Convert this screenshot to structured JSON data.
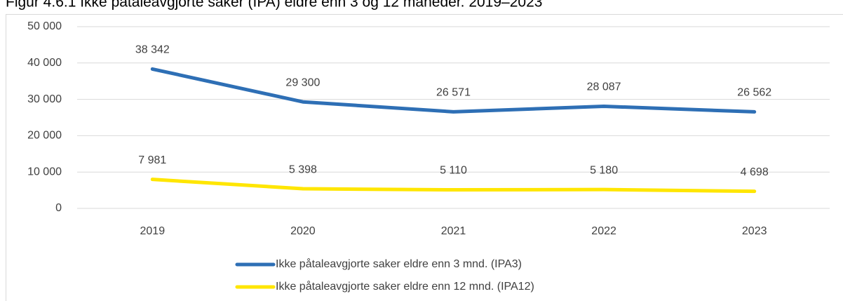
{
  "chart_data": {
    "type": "line",
    "title": "Figur 4.6.1 Ikke påtaleavgjorte saker (IPA) eldre enn 3 og 12 måneder. 2019–2023",
    "categories": [
      "2019",
      "2020",
      "2021",
      "2022",
      "2023"
    ],
    "series": [
      {
        "name": "Ikke påtaleavgjorte saker eldre enn 3 mnd. (IPA3)",
        "color": "#2e6fb5",
        "values": [
          38342,
          29300,
          26571,
          28087,
          26562
        ],
        "value_labels": [
          "38 342",
          "29 300",
          "26 571",
          "28 087",
          "26 562"
        ]
      },
      {
        "name": "Ikke påtaleavgjorte saker eldre enn 12 mnd. (IPA12)",
        "color": "#ffe600",
        "values": [
          7981,
          5398,
          5110,
          5180,
          4698
        ],
        "value_labels": [
          "7 981",
          "5 398",
          "5 110",
          "5 180",
          "4 698"
        ]
      }
    ],
    "ylim": [
      0,
      50000
    ],
    "yticks": [
      0,
      {
        "value": 10000,
        "label": "10 000"
      },
      {
        "value": 20000,
        "label": "20 000"
      },
      {
        "value": 30000,
        "label": "30 000"
      },
      {
        "value": 40000,
        "label": "40 000"
      },
      {
        "value": 50000,
        "label": "50 000"
      }
    ],
    "grid": true,
    "legend": "bottom"
  }
}
